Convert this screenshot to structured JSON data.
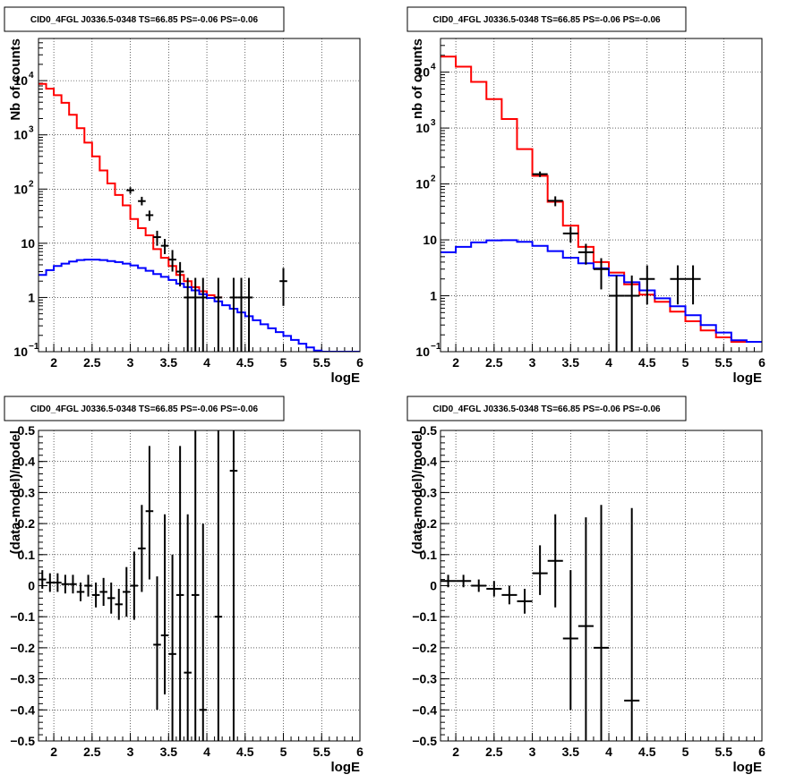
{
  "chart_data": [
    {
      "id": "counts-left",
      "type": "line",
      "title": "CID0_4FGL J0336.5-0348 TS=66.85 PS=-0.06 PS=-0.06",
      "xlabel": "logE",
      "ylabel": "Nb of counts",
      "xlim": [
        1.8,
        6.0
      ],
      "ylim": [
        0.1,
        60000
      ],
      "yscale": "log",
      "grid": true,
      "xticks": [
        "2",
        "2.5",
        "3",
        "3.5",
        "4",
        "4.5",
        "5",
        "5.5",
        "6"
      ],
      "yticks": [
        {
          "v": 0.1,
          "base": "10",
          "exp": "−1"
        },
        {
          "v": 1,
          "label": "1"
        },
        {
          "v": 10,
          "label": "10"
        },
        {
          "v": 100,
          "base": "10",
          "exp": "2"
        },
        {
          "v": 1000,
          "base": "10",
          "exp": "3"
        },
        {
          "v": 10000,
          "base": "10",
          "exp": "4"
        }
      ],
      "series": [
        {
          "name": "",
          "color": "#ff0000",
          "style": "step",
          "binWidth": 0.1,
          "x": [
            1.85,
            1.95,
            2.05,
            2.15,
            2.25,
            2.35,
            2.45,
            2.55,
            2.65,
            2.75,
            2.85,
            2.95,
            3.05,
            3.15,
            3.25,
            3.35,
            3.45,
            3.55,
            3.65,
            3.75,
            3.85,
            3.95,
            4.05,
            4.15
          ],
          "y": [
            8700,
            7100,
            5400,
            3900,
            2350,
            1330,
            720,
            400,
            220,
            127,
            78,
            50,
            28,
            19,
            14,
            7.8,
            5.4,
            3.8,
            2.6,
            2.0,
            1.55,
            1.3,
            1.1,
            1.0
          ]
        },
        {
          "name": "",
          "color": "#0000ff",
          "style": "step",
          "binWidth": 0.1,
          "x": [
            1.85,
            1.95,
            2.05,
            2.15,
            2.25,
            2.35,
            2.45,
            2.55,
            2.65,
            2.75,
            2.85,
            2.95,
            3.05,
            3.15,
            3.25,
            3.35,
            3.45,
            3.55,
            3.65,
            3.75,
            3.85,
            3.95,
            4.05,
            4.15,
            4.25,
            4.35,
            4.45,
            4.55,
            4.65,
            4.75,
            4.85,
            4.95,
            5.05,
            5.15,
            5.25,
            5.35,
            5.45,
            5.55,
            5.65,
            5.75,
            5.85,
            5.95
          ],
          "y": [
            2.6,
            3.2,
            3.8,
            4.2,
            4.6,
            4.9,
            5.0,
            5.0,
            4.9,
            4.7,
            4.5,
            4.2,
            3.9,
            3.5,
            3.1,
            2.7,
            2.4,
            2.1,
            1.8,
            1.55,
            1.35,
            1.15,
            0.98,
            0.85,
            0.72,
            0.62,
            0.53,
            0.45,
            0.38,
            0.32,
            0.27,
            0.23,
            0.195,
            0.165,
            0.14,
            0.12,
            0.105,
            0.1,
            0.1,
            0.1,
            0.1,
            0.1
          ]
        },
        {
          "name": "",
          "color": "#000000",
          "style": "errorbar",
          "x": [
            3.0,
            3.15,
            3.25,
            3.35,
            3.45,
            3.55,
            3.65,
            3.75,
            3.85,
            3.95,
            4.15,
            4.35,
            4.45,
            4.55,
            5.0
          ],
          "y": [
            95,
            60,
            33,
            13,
            9,
            5,
            3,
            1,
            1,
            1,
            1,
            1,
            1,
            1,
            2
          ],
          "xerr": 0.05,
          "ylo": [
            82,
            50,
            26,
            9,
            6.3,
            3,
            1.6,
            0.1,
            0.1,
            0.1,
            0.1,
            0.1,
            0.1,
            0.1,
            0.7
          ],
          "yhi": [
            108,
            72,
            40,
            17,
            12,
            7.5,
            4.5,
            2.3,
            2.3,
            2.3,
            2.3,
            2.3,
            2.3,
            2.3,
            3.5
          ]
        }
      ]
    },
    {
      "id": "counts-right",
      "type": "line",
      "title": "CID0_4FGL J0336.5-0348 TS=66.85 PS=-0.06 PS=-0.06",
      "xlabel": "logE",
      "ylabel": "nb of counts",
      "xlim": [
        1.8,
        6.0
      ],
      "ylim": [
        0.1,
        40000
      ],
      "yscale": "log",
      "grid": true,
      "xticks": [
        "2",
        "2.5",
        "3",
        "3.5",
        "4",
        "4.5",
        "5",
        "5.5",
        "6"
      ],
      "yticks": [
        {
          "v": 0.1,
          "base": "10",
          "exp": "−1"
        },
        {
          "v": 1,
          "label": "1"
        },
        {
          "v": 10,
          "label": "10"
        },
        {
          "v": 100,
          "base": "10",
          "exp": "2"
        },
        {
          "v": 1000,
          "base": "10",
          "exp": "3"
        },
        {
          "v": 10000,
          "base": "10",
          "exp": "4"
        }
      ],
      "series": [
        {
          "name": "",
          "color": "#ff0000",
          "style": "step",
          "binWidth": 0.2,
          "x": [
            1.9,
            2.1,
            2.3,
            2.5,
            2.7,
            2.9,
            3.1,
            3.3,
            3.5,
            3.7,
            3.9,
            4.1,
            4.3,
            4.5,
            4.7,
            4.9,
            5.1,
            5.3,
            5.5,
            5.7,
            5.9
          ],
          "y": [
            19000,
            12500,
            6700,
            3300,
            1450,
            420,
            140,
            48,
            18,
            7.5,
            4.0,
            2.6,
            1.6,
            1.05,
            0.78,
            0.52,
            0.35,
            0.24,
            0.18,
            0.15,
            0.15
          ]
        },
        {
          "name": "",
          "color": "#0000ff",
          "style": "step",
          "binWidth": 0.2,
          "x": [
            1.9,
            2.1,
            2.3,
            2.5,
            2.7,
            2.9,
            3.1,
            3.3,
            3.5,
            3.7,
            3.9,
            4.1,
            4.3,
            4.5,
            4.7,
            4.9,
            5.1,
            5.3,
            5.5,
            5.7,
            5.9
          ],
          "y": [
            6.0,
            7.5,
            9.0,
            9.8,
            9.9,
            9.2,
            7.8,
            6.3,
            4.8,
            3.8,
            3.1,
            2.3,
            1.75,
            1.25,
            0.9,
            0.65,
            0.45,
            0.3,
            0.22,
            0.16,
            0.15
          ]
        },
        {
          "name": "",
          "color": "#000000",
          "style": "errorbar",
          "x": [
            3.1,
            3.3,
            3.5,
            3.7,
            3.9,
            4.1,
            4.3,
            4.5,
            4.9,
            5.1
          ],
          "y": [
            150,
            50,
            13,
            6,
            3,
            1,
            1,
            2,
            2,
            2
          ],
          "xerr": 0.1,
          "ylo": [
            133,
            40,
            9,
            3.6,
            1.3,
            0.1,
            0.1,
            0.7,
            0.7,
            0.7
          ],
          "yhi": [
            167,
            60,
            17,
            8.5,
            4.7,
            2.3,
            2.3,
            3.5,
            3.5,
            3.5
          ]
        }
      ]
    },
    {
      "id": "residuals-left",
      "type": "scatter",
      "title": "CID0_4FGL J0336.5-0348 TS=66.85 PS=-0.06 PS=-0.06",
      "xlabel": "logE",
      "ylabel": "(data-model)/model",
      "xlim": [
        1.8,
        6.0
      ],
      "ylim": [
        -0.5,
        0.5
      ],
      "yscale": "linear",
      "grid": true,
      "xticks": [
        "2",
        "2.5",
        "3",
        "3.5",
        "4",
        "4.5",
        "5",
        "5.5",
        "6"
      ],
      "yticks": [
        {
          "v": -0.5,
          "label": "−0.5"
        },
        {
          "v": -0.4,
          "label": "−0.4"
        },
        {
          "v": -0.3,
          "label": "−0.3"
        },
        {
          "v": -0.2,
          "label": "−0.2"
        },
        {
          "v": -0.1,
          "label": "−0.1"
        },
        {
          "v": 0,
          "label": "0"
        },
        {
          "v": 0.1,
          "label": "0.1"
        },
        {
          "v": 0.2,
          "label": "0.2"
        },
        {
          "v": 0.3,
          "label": "0.3"
        },
        {
          "v": 0.4,
          "label": "0.4"
        },
        {
          "v": 0.5,
          "label": "0.5"
        }
      ],
      "series": [
        {
          "name": "",
          "color": "#000000",
          "style": "errorbar",
          "x": [
            1.85,
            1.95,
            2.05,
            2.15,
            2.25,
            2.35,
            2.45,
            2.55,
            2.65,
            2.75,
            2.85,
            2.95,
            3.05,
            3.15,
            3.25,
            3.35,
            3.45,
            3.55,
            3.65,
            3.75,
            3.85,
            3.95,
            4.15,
            4.35
          ],
          "y": [
            0.02,
            0.01,
            0.01,
            0.005,
            0.005,
            -0.02,
            0.0,
            -0.03,
            -0.02,
            -0.04,
            -0.06,
            -0.02,
            0.0,
            0.12,
            0.24,
            -0.19,
            -0.16,
            -0.22,
            -0.03,
            -0.28,
            -0.03,
            -0.4,
            -0.1,
            0.37
          ],
          "xerr": 0.05,
          "ylo": [
            -0.01,
            -0.02,
            -0.02,
            -0.025,
            -0.025,
            -0.05,
            -0.035,
            -0.07,
            -0.065,
            -0.09,
            -0.11,
            -0.1,
            -0.11,
            -0.02,
            0.02,
            -0.4,
            -0.35,
            -0.5,
            -0.5,
            -0.5,
            -0.5,
            -0.5,
            -0.5,
            -0.5
          ],
          "yhi": [
            0.05,
            0.04,
            0.04,
            0.035,
            0.035,
            0.01,
            0.035,
            0.01,
            0.025,
            0.01,
            -0.01,
            0.06,
            0.11,
            0.26,
            0.45,
            0.03,
            0.23,
            0.1,
            0.45,
            0.23,
            0.5,
            0.2,
            0.5,
            0.5
          ]
        }
      ]
    },
    {
      "id": "residuals-right",
      "type": "scatter",
      "title": "CID0_4FGL J0336.5-0348 TS=66.85 PS=-0.06 PS=-0.06",
      "xlabel": "logE",
      "ylabel": "(data-model)/model",
      "xlim": [
        1.8,
        6.0
      ],
      "ylim": [
        -0.5,
        0.5
      ],
      "yscale": "linear",
      "grid": true,
      "xticks": [
        "2",
        "2.5",
        "3",
        "3.5",
        "4",
        "4.5",
        "5",
        "5.5",
        "6"
      ],
      "yticks": [
        {
          "v": -0.5,
          "label": "−0.5"
        },
        {
          "v": -0.4,
          "label": "−0.4"
        },
        {
          "v": -0.3,
          "label": "−0.3"
        },
        {
          "v": -0.2,
          "label": "−0.2"
        },
        {
          "v": -0.1,
          "label": "−0.1"
        },
        {
          "v": 0,
          "label": "0"
        },
        {
          "v": 0.1,
          "label": "0.1"
        },
        {
          "v": 0.2,
          "label": "0.2"
        },
        {
          "v": 0.3,
          "label": "0.3"
        },
        {
          "v": 0.4,
          "label": "0.4"
        },
        {
          "v": 0.5,
          "label": "0.5"
        }
      ],
      "series": [
        {
          "name": "",
          "color": "#000000",
          "style": "errorbar",
          "x": [
            1.9,
            2.1,
            2.3,
            2.5,
            2.7,
            2.9,
            3.1,
            3.3,
            3.5,
            3.7,
            3.9,
            4.3
          ],
          "y": [
            0.015,
            0.015,
            0.0,
            -0.01,
            -0.03,
            -0.05,
            0.04,
            0.08,
            -0.17,
            -0.13,
            -0.2,
            -0.37
          ],
          "xerr": 0.1,
          "ylo": [
            -0.005,
            -0.005,
            -0.02,
            -0.035,
            -0.06,
            -0.09,
            -0.03,
            -0.07,
            -0.4,
            -0.5,
            -0.5,
            -0.5
          ],
          "yhi": [
            0.035,
            0.035,
            0.02,
            0.015,
            0.0,
            -0.01,
            0.13,
            0.23,
            0.05,
            0.22,
            0.26,
            0.25
          ]
        }
      ]
    }
  ]
}
